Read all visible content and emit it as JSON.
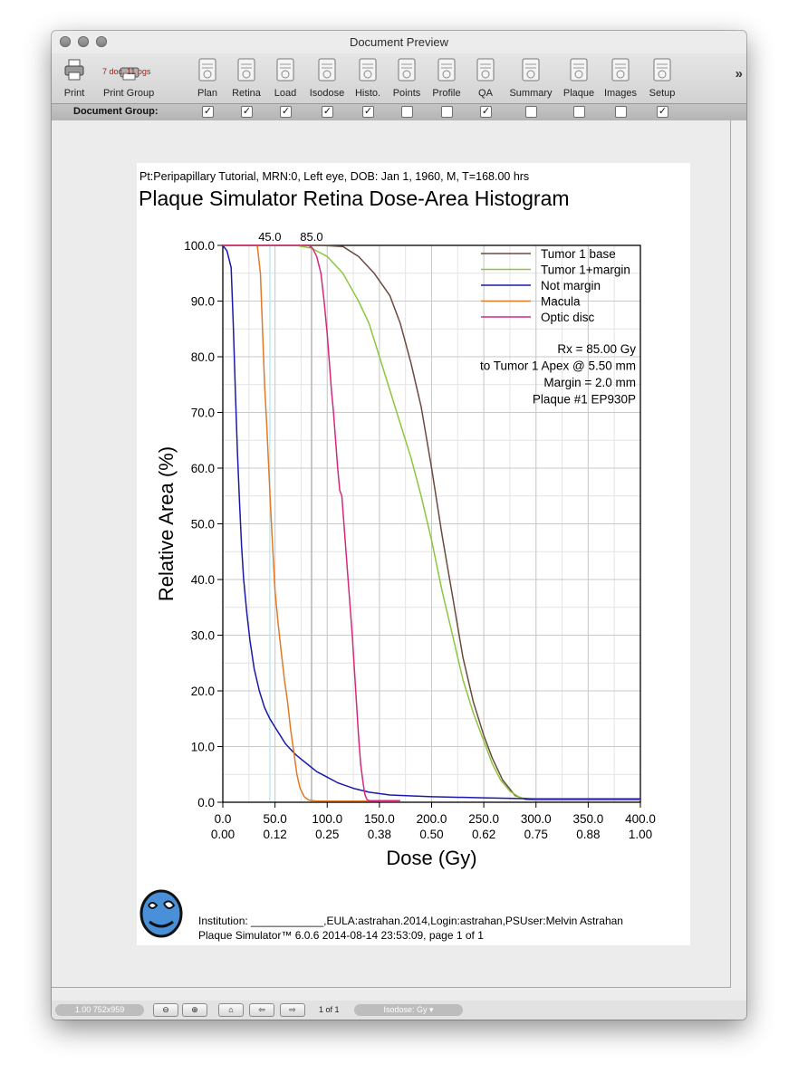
{
  "window": {
    "title": "Document Preview"
  },
  "toolbar": {
    "print": {
      "label": "Print",
      "icon": "printer-icon"
    },
    "print_group": {
      "label": "Print Group",
      "badge": "7 doc, 11 pgs",
      "icon": "printer-stack-icon"
    },
    "items": [
      {
        "label": "Plan",
        "icon": "plan-document-icon",
        "checked": true
      },
      {
        "label": "Retina",
        "icon": "retina-document-icon",
        "checked": true
      },
      {
        "label": "Load",
        "icon": "load-document-icon",
        "checked": true
      },
      {
        "label": "Isodose",
        "icon": "isodose-document-icon",
        "checked": true
      },
      {
        "label": "Histo.",
        "icon": "histogram-document-icon",
        "checked": true
      },
      {
        "label": "Points",
        "icon": "points-document-icon",
        "checked": false
      },
      {
        "label": "Profile",
        "icon": "profile-document-icon",
        "checked": false
      },
      {
        "label": "QA",
        "icon": "qa-document-icon",
        "checked": true
      },
      {
        "label": "Summary",
        "icon": "summary-document-icon",
        "checked": false
      },
      {
        "label": "Plaque",
        "icon": "plaque-document-icon",
        "checked": false
      },
      {
        "label": "Images",
        "icon": "images-document-icon",
        "checked": false
      },
      {
        "label": "Setup",
        "icon": "setup-document-icon",
        "checked": true
      }
    ],
    "overflow": "»"
  },
  "group_bar": {
    "label": "Document Group:",
    "check_glyph": "✓"
  },
  "document": {
    "header": "Pt:Peripapillary Tutorial, MRN:0, Left eye, DOB: Jan 1, 1960, M, T=168.00 hrs",
    "footer_line1": "Institution: ____________,EULA:astrahan.2014,Login:astrahan,PSUser:Melvin Astrahan",
    "footer_line2": "Plaque Simulator™ 6.0.6 2014-08-14 23:53:09, page 1 of 1",
    "logo_icon": "eye-physics-logo-icon"
  },
  "chart_data": {
    "type": "line",
    "title": "Plaque Simulator Retina Dose-Area Histogram",
    "xlabel": "Dose (Gy)",
    "ylabel": "Relative Area (%)",
    "xlim": [
      0,
      400
    ],
    "ylim": [
      0,
      100
    ],
    "x_ticks": [
      "0.0",
      "50.0",
      "100.0",
      "150.0",
      "200.0",
      "250.0",
      "300.0",
      "350.0",
      "400.0"
    ],
    "x_ticks_secondary": [
      "0.00",
      "0.12",
      "0.25",
      "0.38",
      "0.50",
      "0.62",
      "0.75",
      "0.88",
      "1.00"
    ],
    "y_ticks": [
      "0.0",
      "10.0",
      "20.0",
      "30.0",
      "40.0",
      "50.0",
      "60.0",
      "70.0",
      "80.0",
      "90.0",
      "100.0"
    ],
    "grid": true,
    "legend_position": "top-right",
    "markers": [
      {
        "label": "45.0",
        "x": 45,
        "color": "#b8eef5"
      },
      {
        "label": "85.0",
        "x": 85,
        "color": "#b5b5b5"
      }
    ],
    "annotations": [
      "Rx = 85.00 Gy",
      "to Tumor 1 Apex @ 5.50 mm",
      "Margin = 2.0 mm",
      "Plaque #1 EP930P"
    ],
    "series": [
      {
        "name": "Tumor 1 base",
        "color": "#6b4a3e",
        "points": [
          [
            0,
            100
          ],
          [
            95,
            100
          ],
          [
            115,
            99.8
          ],
          [
            130,
            98
          ],
          [
            145,
            95
          ],
          [
            160,
            91
          ],
          [
            170,
            86
          ],
          [
            180,
            79
          ],
          [
            190,
            71
          ],
          [
            200,
            60
          ],
          [
            210,
            48
          ],
          [
            220,
            37
          ],
          [
            230,
            26
          ],
          [
            240,
            18
          ],
          [
            250,
            12
          ],
          [
            258,
            8
          ],
          [
            268,
            4
          ],
          [
            280,
            1.2
          ],
          [
            290,
            0.5
          ],
          [
            300,
            0.4
          ],
          [
            400,
            0.4
          ]
        ]
      },
      {
        "name": "Tumor 1+margin",
        "color": "#8cc63f",
        "points": [
          [
            0,
            100
          ],
          [
            70,
            100
          ],
          [
            85,
            99.5
          ],
          [
            100,
            98
          ],
          [
            115,
            95
          ],
          [
            130,
            90
          ],
          [
            140,
            86
          ],
          [
            150,
            80
          ],
          [
            160,
            74
          ],
          [
            170,
            68
          ],
          [
            180,
            62
          ],
          [
            190,
            55
          ],
          [
            200,
            47
          ],
          [
            210,
            38
          ],
          [
            220,
            30
          ],
          [
            230,
            22
          ],
          [
            240,
            16
          ],
          [
            250,
            11
          ],
          [
            258,
            7
          ],
          [
            266,
            4
          ],
          [
            275,
            2
          ],
          [
            285,
            0.8
          ],
          [
            300,
            0.5
          ],
          [
            400,
            0.5
          ]
        ]
      },
      {
        "name": "Not margin",
        "color": "#1a1aaa",
        "points": [
          [
            0,
            100
          ],
          [
            4,
            99
          ],
          [
            8,
            96
          ],
          [
            10,
            86
          ],
          [
            12,
            74
          ],
          [
            14,
            63
          ],
          [
            16,
            54
          ],
          [
            18,
            46
          ],
          [
            20,
            40
          ],
          [
            23,
            34
          ],
          [
            26,
            29
          ],
          [
            30,
            24
          ],
          [
            35,
            20
          ],
          [
            40,
            17
          ],
          [
            45,
            15
          ],
          [
            50,
            13.5
          ],
          [
            55,
            12
          ],
          [
            60,
            10.5
          ],
          [
            65,
            9.5
          ],
          [
            70,
            8.5
          ],
          [
            80,
            7
          ],
          [
            90,
            5.5
          ],
          [
            100,
            4.5
          ],
          [
            110,
            3.5
          ],
          [
            125,
            2.5
          ],
          [
            140,
            1.8
          ],
          [
            160,
            1.3
          ],
          [
            200,
            1
          ],
          [
            250,
            0.8
          ],
          [
            300,
            0.6
          ],
          [
            400,
            0.6
          ]
        ]
      },
      {
        "name": "Macula",
        "color": "#e07a27",
        "points": [
          [
            0,
            100
          ],
          [
            33,
            100
          ],
          [
            36,
            95
          ],
          [
            38,
            85
          ],
          [
            40,
            75
          ],
          [
            42,
            68
          ],
          [
            44,
            60
          ],
          [
            46,
            52
          ],
          [
            48,
            45
          ],
          [
            50,
            38
          ],
          [
            53,
            32
          ],
          [
            56,
            27
          ],
          [
            59,
            22
          ],
          [
            62,
            18
          ],
          [
            65,
            13
          ],
          [
            68,
            9
          ],
          [
            71,
            5
          ],
          [
            74,
            2.5
          ],
          [
            78,
            1
          ],
          [
            82,
            0.4
          ],
          [
            90,
            0.2
          ],
          [
            150,
            0.2
          ]
        ]
      },
      {
        "name": "Optic disc",
        "color": "#d6287a",
        "points": [
          [
            0,
            100
          ],
          [
            82,
            100
          ],
          [
            86,
            99.5
          ],
          [
            90,
            98
          ],
          [
            94,
            95
          ],
          [
            97,
            90
          ],
          [
            100,
            84
          ],
          [
            102,
            79
          ],
          [
            104,
            74
          ],
          [
            106,
            70
          ],
          [
            108,
            65
          ],
          [
            110,
            60
          ],
          [
            112,
            56
          ],
          [
            114,
            55
          ],
          [
            116,
            50
          ],
          [
            118,
            45
          ],
          [
            120,
            40
          ],
          [
            122,
            35
          ],
          [
            124,
            30
          ],
          [
            126,
            24
          ],
          [
            128,
            18
          ],
          [
            130,
            12
          ],
          [
            132,
            7
          ],
          [
            134,
            4
          ],
          [
            136,
            1.5
          ],
          [
            138,
            0.5
          ],
          [
            140,
            0.3
          ],
          [
            170,
            0.3
          ]
        ]
      }
    ]
  },
  "statusbar": {
    "zoom": "1.00 752x959",
    "page": "1 of 1",
    "isodose": "Isodose: Gy",
    "zoom_out_icon": "zoom-out-icon",
    "zoom_in_icon": "zoom-in-icon",
    "home_icon": "home-icon",
    "prev_icon": "prev-page-icon",
    "next_icon": "next-page-icon"
  }
}
